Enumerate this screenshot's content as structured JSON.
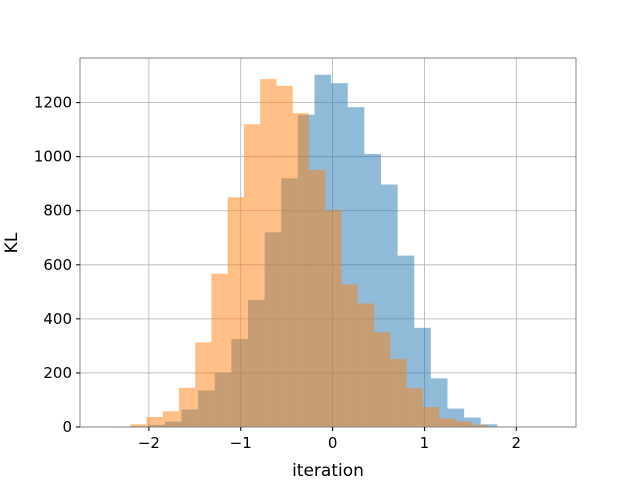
{
  "chart_data": {
    "type": "bar",
    "title": "",
    "xlabel": "iteration",
    "ylabel": "KL",
    "xlim": [
      -2.75,
      2.65
    ],
    "ylim": [
      0,
      1365
    ],
    "xticks": [
      -2,
      -1,
      0,
      1,
      2
    ],
    "xtick_labels": [
      "−2",
      "−1",
      "0",
      "1",
      "2"
    ],
    "yticks": [
      0,
      200,
      400,
      600,
      800,
      1000,
      1200
    ],
    "ytick_labels": [
      "0",
      "200",
      "400",
      "600",
      "800",
      "1000",
      "1200"
    ],
    "grid": true,
    "legend": null,
    "histogram": true,
    "series": [
      {
        "color": "#1f77b4",
        "opacity": 0.5,
        "bin_edges": [
          -2.188,
          -2.007,
          -1.826,
          -1.645,
          -1.464,
          -1.283,
          -1.102,
          -0.921,
          -0.74,
          -0.559,
          -0.378,
          -0.197,
          -0.016,
          0.165,
          0.346,
          0.527,
          0.708,
          0.889,
          1.07,
          1.251,
          1.432,
          1.613,
          1.794
        ],
        "counts": [
          3,
          8,
          20,
          65,
          135,
          200,
          325,
          470,
          720,
          920,
          1155,
          1303,
          1272,
          1183,
          1010,
          897,
          634,
          367,
          180,
          68,
          35,
          10
        ]
      },
      {
        "color": "#ff7f0e",
        "opacity": 0.5,
        "bin_edges": [
          -2.381,
          -2.204,
          -2.027,
          -1.85,
          -1.673,
          -1.496,
          -1.319,
          -1.142,
          -0.965,
          -0.788,
          -0.611,
          -0.434,
          -0.257,
          -0.08,
          0.097,
          0.274,
          0.451,
          0.628,
          0.805,
          0.982,
          1.159,
          1.336,
          1.513,
          1.69,
          1.867,
          2.044,
          2.221
        ],
        "counts": [
          2,
          10,
          37,
          58,
          145,
          313,
          567,
          850,
          1120,
          1287,
          1262,
          1161,
          951,
          802,
          527,
          457,
          350,
          252,
          143,
          74,
          32,
          20,
          8,
          2,
          1,
          0
        ]
      }
    ]
  }
}
